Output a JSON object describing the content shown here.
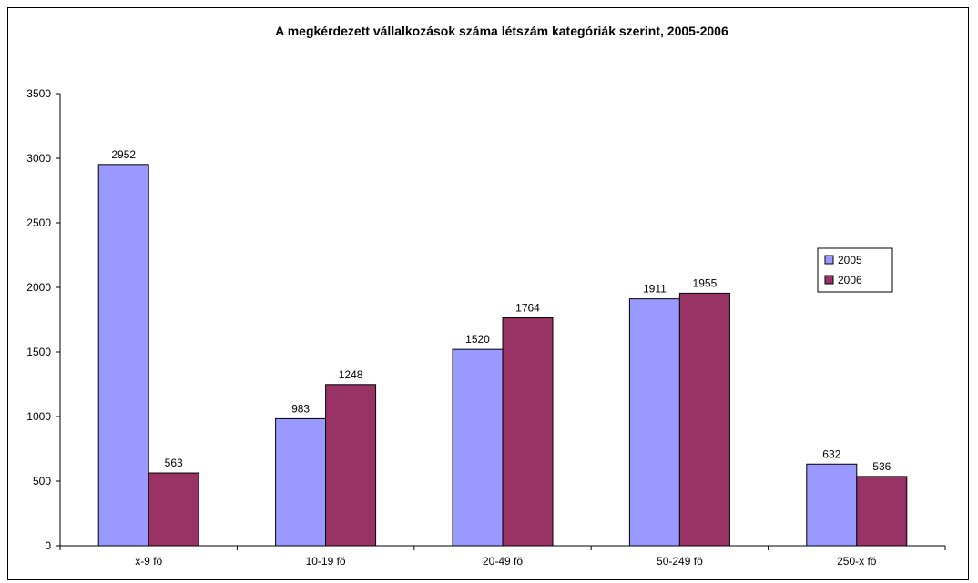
{
  "chart_data": {
    "type": "bar",
    "title": "A megkérdezett vállalkozások száma létszám kategóriák szerint, 2005-2006",
    "xlabel": "",
    "ylabel": "",
    "categories": [
      "x-9 fö",
      "10-19 fö",
      "20-49 fö",
      "50-249 fö",
      "250-x fö"
    ],
    "series": [
      {
        "name": "2005",
        "values": [
          2952,
          983,
          1520,
          1911,
          632
        ],
        "color": "#9999FF"
      },
      {
        "name": "2006",
        "values": [
          563,
          1248,
          1764,
          1955,
          536
        ],
        "color": "#993366"
      }
    ],
    "ylim": [
      0,
      3500
    ],
    "yticks": [
      0,
      500,
      1000,
      1500,
      2000,
      2500,
      3000,
      3500
    ],
    "grid": false,
    "legend": "right",
    "data_labels": true
  }
}
